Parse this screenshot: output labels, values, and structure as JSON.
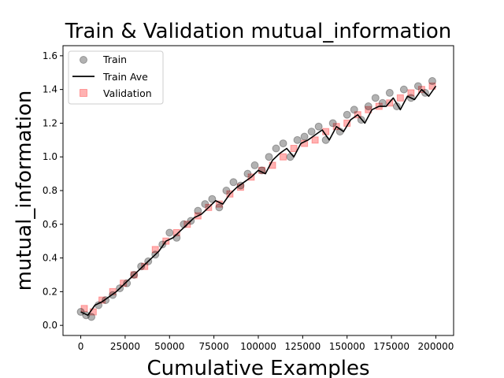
{
  "chart_data": {
    "type": "scatter",
    "title": "Train & Validation mutual_information",
    "xlabel": "Cumulative Examples",
    "ylabel": "mutual_information",
    "xlim": [
      -10000,
      210000
    ],
    "ylim": [
      -0.06,
      1.66
    ],
    "xticks": [
      0,
      25000,
      50000,
      75000,
      100000,
      125000,
      150000,
      175000,
      200000
    ],
    "yticks": [
      0.0,
      0.2,
      0.4,
      0.6,
      0.8,
      1.0,
      1.2,
      1.4,
      1.6
    ],
    "legend": {
      "position": "top-left",
      "entries": [
        "Train",
        "Train Ave",
        "Validation"
      ]
    },
    "colors": {
      "train": "#000000",
      "train_ave": "#000000",
      "validation": "#ff0000"
    },
    "series": [
      {
        "name": "Train",
        "marker": "circle",
        "x": [
          0,
          3000,
          6000,
          10000,
          14000,
          18000,
          22000,
          26000,
          30000,
          34000,
          38000,
          42000,
          46000,
          50000,
          54000,
          58000,
          62000,
          66000,
          70000,
          74000,
          78000,
          82000,
          86000,
          90000,
          94000,
          98000,
          102000,
          106000,
          110000,
          114000,
          118000,
          122000,
          126000,
          130000,
          134000,
          138000,
          142000,
          146000,
          150000,
          154000,
          158000,
          162000,
          166000,
          170000,
          174000,
          178000,
          182000,
          186000,
          190000,
          194000,
          198000
        ],
        "y": [
          0.08,
          0.06,
          0.05,
          0.12,
          0.15,
          0.18,
          0.22,
          0.25,
          0.3,
          0.35,
          0.38,
          0.42,
          0.48,
          0.55,
          0.52,
          0.6,
          0.62,
          0.68,
          0.72,
          0.75,
          0.7,
          0.8,
          0.85,
          0.83,
          0.9,
          0.95,
          0.92,
          1.0,
          1.05,
          1.08,
          1.0,
          1.1,
          1.12,
          1.15,
          1.18,
          1.1,
          1.2,
          1.15,
          1.25,
          1.28,
          1.22,
          1.3,
          1.35,
          1.32,
          1.38,
          1.3,
          1.4,
          1.35,
          1.42,
          1.38,
          1.45
        ]
      },
      {
        "name": "Train Ave",
        "marker": "line",
        "x": [
          0,
          4000,
          8000,
          12000,
          16000,
          20000,
          24000,
          28000,
          32000,
          36000,
          40000,
          44000,
          48000,
          52000,
          56000,
          60000,
          64000,
          68000,
          72000,
          76000,
          80000,
          84000,
          88000,
          92000,
          96000,
          100000,
          104000,
          108000,
          112000,
          116000,
          120000,
          124000,
          128000,
          132000,
          136000,
          140000,
          144000,
          148000,
          152000,
          156000,
          160000,
          164000,
          168000,
          172000,
          176000,
          180000,
          184000,
          188000,
          192000,
          196000,
          200000
        ],
        "y": [
          0.08,
          0.06,
          0.12,
          0.14,
          0.17,
          0.2,
          0.24,
          0.28,
          0.32,
          0.36,
          0.4,
          0.44,
          0.5,
          0.52,
          0.56,
          0.6,
          0.64,
          0.66,
          0.7,
          0.74,
          0.72,
          0.78,
          0.82,
          0.85,
          0.88,
          0.92,
          0.9,
          0.98,
          1.02,
          1.05,
          1.0,
          1.08,
          1.1,
          1.13,
          1.16,
          1.1,
          1.18,
          1.15,
          1.22,
          1.25,
          1.2,
          1.28,
          1.3,
          1.3,
          1.35,
          1.28,
          1.36,
          1.34,
          1.4,
          1.36,
          1.42
        ]
      },
      {
        "name": "Validation",
        "marker": "square",
        "x": [
          2000,
          7000,
          12000,
          18000,
          24000,
          30000,
          36000,
          42000,
          48000,
          54000,
          60000,
          66000,
          72000,
          78000,
          84000,
          90000,
          96000,
          102000,
          108000,
          114000,
          120000,
          126000,
          132000,
          138000,
          144000,
          150000,
          156000,
          162000,
          168000,
          174000,
          180000,
          186000,
          192000,
          198000
        ],
        "y": [
          0.1,
          0.08,
          0.15,
          0.2,
          0.25,
          0.3,
          0.35,
          0.45,
          0.5,
          0.55,
          0.6,
          0.65,
          0.7,
          0.72,
          0.78,
          0.82,
          0.88,
          0.92,
          0.95,
          1.0,
          1.05,
          1.08,
          1.1,
          1.15,
          1.18,
          1.2,
          1.25,
          1.28,
          1.3,
          1.32,
          1.35,
          1.38,
          1.4,
          1.42
        ]
      }
    ]
  }
}
